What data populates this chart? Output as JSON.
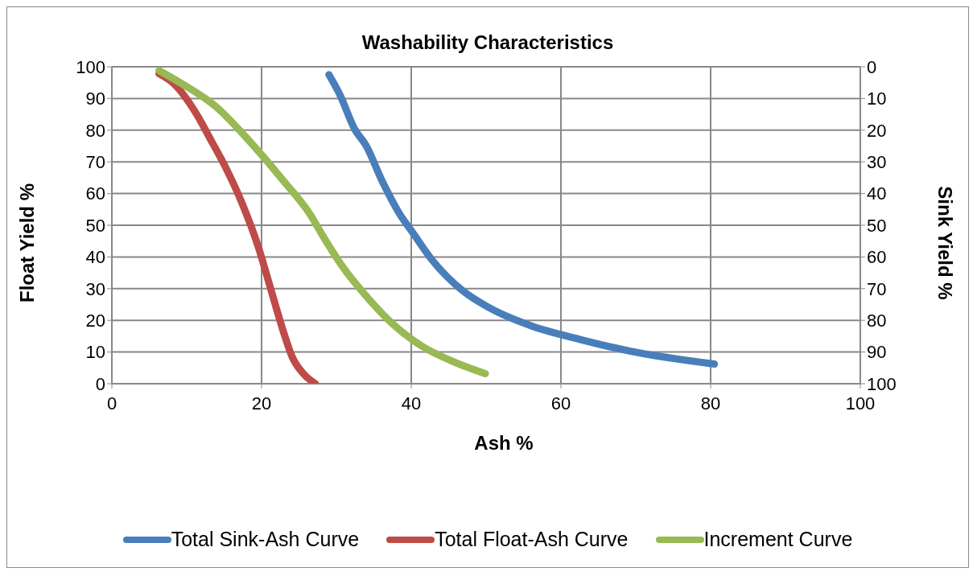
{
  "chart_data": {
    "type": "line",
    "title": "Washability Characteristics",
    "xlabel": "Ash %",
    "ylabel": "Float Yield %",
    "y2label": "Sink Yield %",
    "xlim": [
      0,
      100
    ],
    "xticks": [
      0,
      20,
      40,
      60,
      80,
      100
    ],
    "ylim": [
      0,
      100
    ],
    "yticks": [
      0,
      10,
      20,
      30,
      40,
      50,
      60,
      70,
      80,
      90,
      100
    ],
    "y2lim": [
      100,
      0
    ],
    "y2ticks": [
      0,
      10,
      20,
      30,
      40,
      50,
      60,
      70,
      80,
      90,
      100
    ],
    "grid": true,
    "legend": "bottom",
    "marker": "none",
    "line_style": "solid",
    "series": [
      {
        "name": "Total Sink-Ash Curve",
        "color": "#4a7ebb",
        "x": [
          29.0,
          30.5,
          32.4,
          34.0,
          36.1,
          38.6,
          40.1,
          42.9,
          46.9,
          50.4,
          56.1,
          62.5,
          69.2,
          80.5
        ],
        "values": [
          97.5,
          91,
          80.5,
          75,
          64,
          53,
          48,
          38.7,
          29.3,
          24,
          18.2,
          14,
          10.3,
          6.2
        ]
      },
      {
        "name": "Total Float-Ash Curve",
        "color": "#be4b48",
        "x": [
          6.3,
          8.3,
          11.2,
          13.2,
          15.1,
          17.4,
          19.6,
          20.7,
          21.9,
          23.0,
          24.1,
          25.5,
          27.2
        ],
        "values": [
          97.8,
          94.6,
          85.5,
          77,
          68.7,
          56.9,
          42.9,
          34.2,
          24.4,
          15.8,
          8.4,
          3.4,
          0
        ]
      },
      {
        "name": "Increment Curve",
        "color": "#98b954",
        "x": [
          6.3,
          9.1,
          14.0,
          17.6,
          20.2,
          23.0,
          26.5,
          28.1,
          30.9,
          34.3,
          37.7,
          41.6,
          45.5,
          49.9
        ],
        "values": [
          98.8,
          95,
          87.2,
          78.6,
          71.7,
          63.8,
          53.4,
          47,
          36.7,
          26.8,
          18.5,
          11.6,
          7.1,
          3.2
        ]
      }
    ]
  }
}
